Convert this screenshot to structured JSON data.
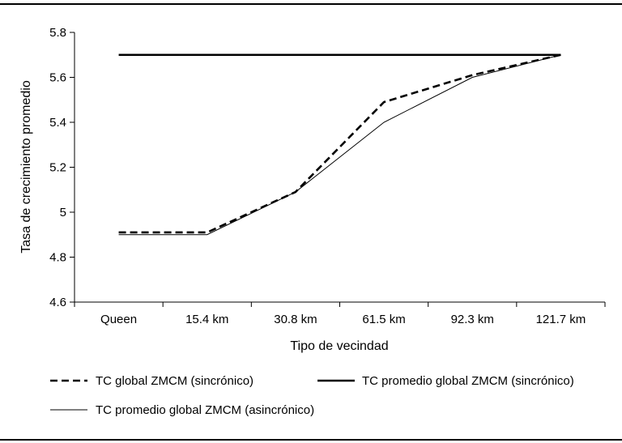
{
  "chart_data": {
    "type": "line",
    "title": "",
    "xlabel": "Tipo de vecindad",
    "ylabel": "Tasa de crecimiento promedio",
    "categories": [
      "Queen",
      "15.4 km",
      "30.8 km",
      "61.5 km",
      "92.3 km",
      "121.7 km"
    ],
    "ylim": [
      4.6,
      5.8
    ],
    "yticks": [
      "4.6",
      "4.8",
      "5",
      "5.2",
      "5.4",
      "5.6",
      "5.8"
    ],
    "ytick_values": [
      4.6,
      4.8,
      5.0,
      5.2,
      5.4,
      5.6,
      5.8
    ],
    "grid": false,
    "legend_position": "bottom",
    "series": [
      {
        "name": "TC global ZMCM (sincrónico)",
        "style": "dashed-thick",
        "values": [
          4.91,
          4.91,
          5.09,
          5.49,
          5.61,
          5.7
        ]
      },
      {
        "name": "TC promedio global ZMCM (sincrónico)",
        "style": "solid-thick",
        "values": [
          5.7,
          5.7,
          5.7,
          5.7,
          5.7,
          5.7
        ]
      },
      {
        "name": "TC promedio global ZMCM (asincrónico)",
        "style": "solid-thin",
        "values": [
          4.9,
          4.9,
          5.09,
          5.4,
          5.6,
          5.7
        ]
      }
    ],
    "colors": {
      "line": "#000000",
      "background": "#ffffff"
    }
  }
}
